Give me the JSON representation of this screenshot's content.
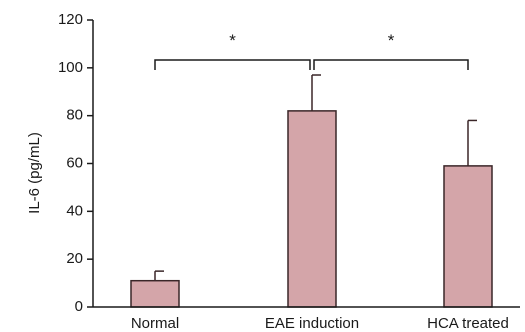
{
  "chart_data": {
    "type": "bar",
    "ylabel": "IL-6 (pg/mL)",
    "ylim": [
      0,
      120
    ],
    "yticks": [
      0,
      20,
      40,
      60,
      80,
      100,
      120
    ],
    "categories": [
      "Normal",
      "EAE induction",
      "HCA treated"
    ],
    "values": [
      11,
      82,
      59
    ],
    "errors": [
      4,
      15,
      19
    ],
    "bar_color": "#d4a5a9",
    "significance": [
      {
        "from": 0,
        "to": 1,
        "label": "*"
      },
      {
        "from": 1,
        "to": 2,
        "label": "*"
      }
    ]
  }
}
